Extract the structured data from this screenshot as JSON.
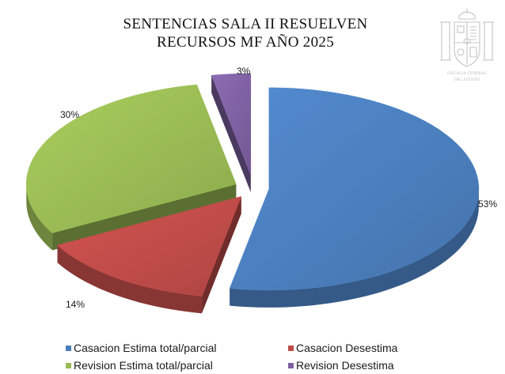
{
  "chart_data": {
    "type": "pie",
    "style": "3d-exploded",
    "title_lines": [
      "SENTENCIAS SALA II RESUELVEN",
      "RECURSOS MF AÑO 2025"
    ],
    "slices": [
      {
        "name": "Casacion Estima total/parcial",
        "value": 53,
        "label": "53%",
        "color": "#4a7dbb"
      },
      {
        "name": "Casacion Desestima",
        "value": 14,
        "label": "14%",
        "color": "#bd4b48"
      },
      {
        "name": "Revision Estima total/parcial",
        "value": 30,
        "label": "30%",
        "color": "#98b954"
      },
      {
        "name": "Revision Desestima",
        "value": 3,
        "label": "3%",
        "color": "#7d60a0"
      }
    ],
    "legend_position": "bottom"
  },
  "watermark": {
    "line1": "FISCALIA GENERAL",
    "line2": "DEL ESTADO"
  }
}
